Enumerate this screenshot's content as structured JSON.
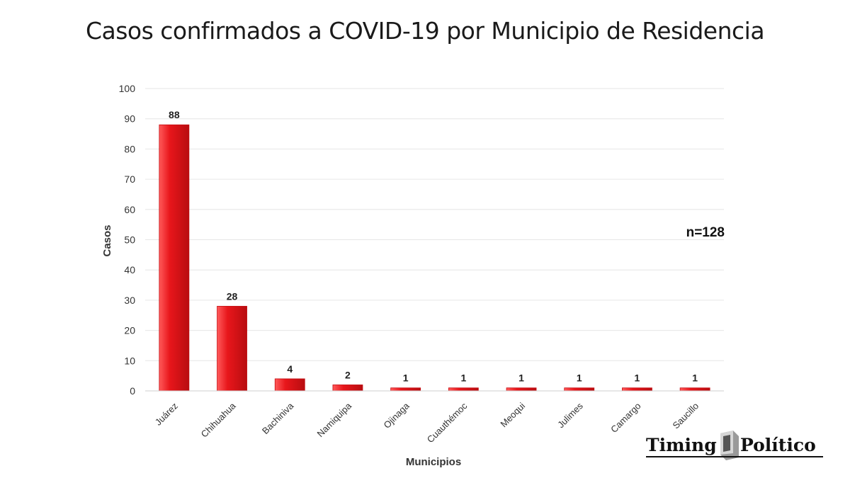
{
  "chart_data": {
    "type": "bar",
    "title": "Casos confirmados a COVID-19 por Municipio de Residencia",
    "xlabel": "Municipios",
    "ylabel": "Casos",
    "ylim": [
      0,
      100
    ],
    "yticks": [
      0,
      10,
      20,
      30,
      40,
      50,
      60,
      70,
      80,
      90,
      100
    ],
    "categories": [
      "Juárez",
      "Chihuahua",
      "Bachiniva",
      "Namiquipa",
      "Ojinaga",
      "Cuauthémoc",
      "Meoqui",
      "Julimes",
      "Camargo",
      "Saucillo"
    ],
    "values": [
      88,
      28,
      4,
      2,
      1,
      1,
      1,
      1,
      1,
      1
    ],
    "annotation": "n=128",
    "bar_color": "#e8161b",
    "grid": true,
    "legend": "none"
  },
  "branding": {
    "left_word": "Timing",
    "right_word": "Político"
  }
}
